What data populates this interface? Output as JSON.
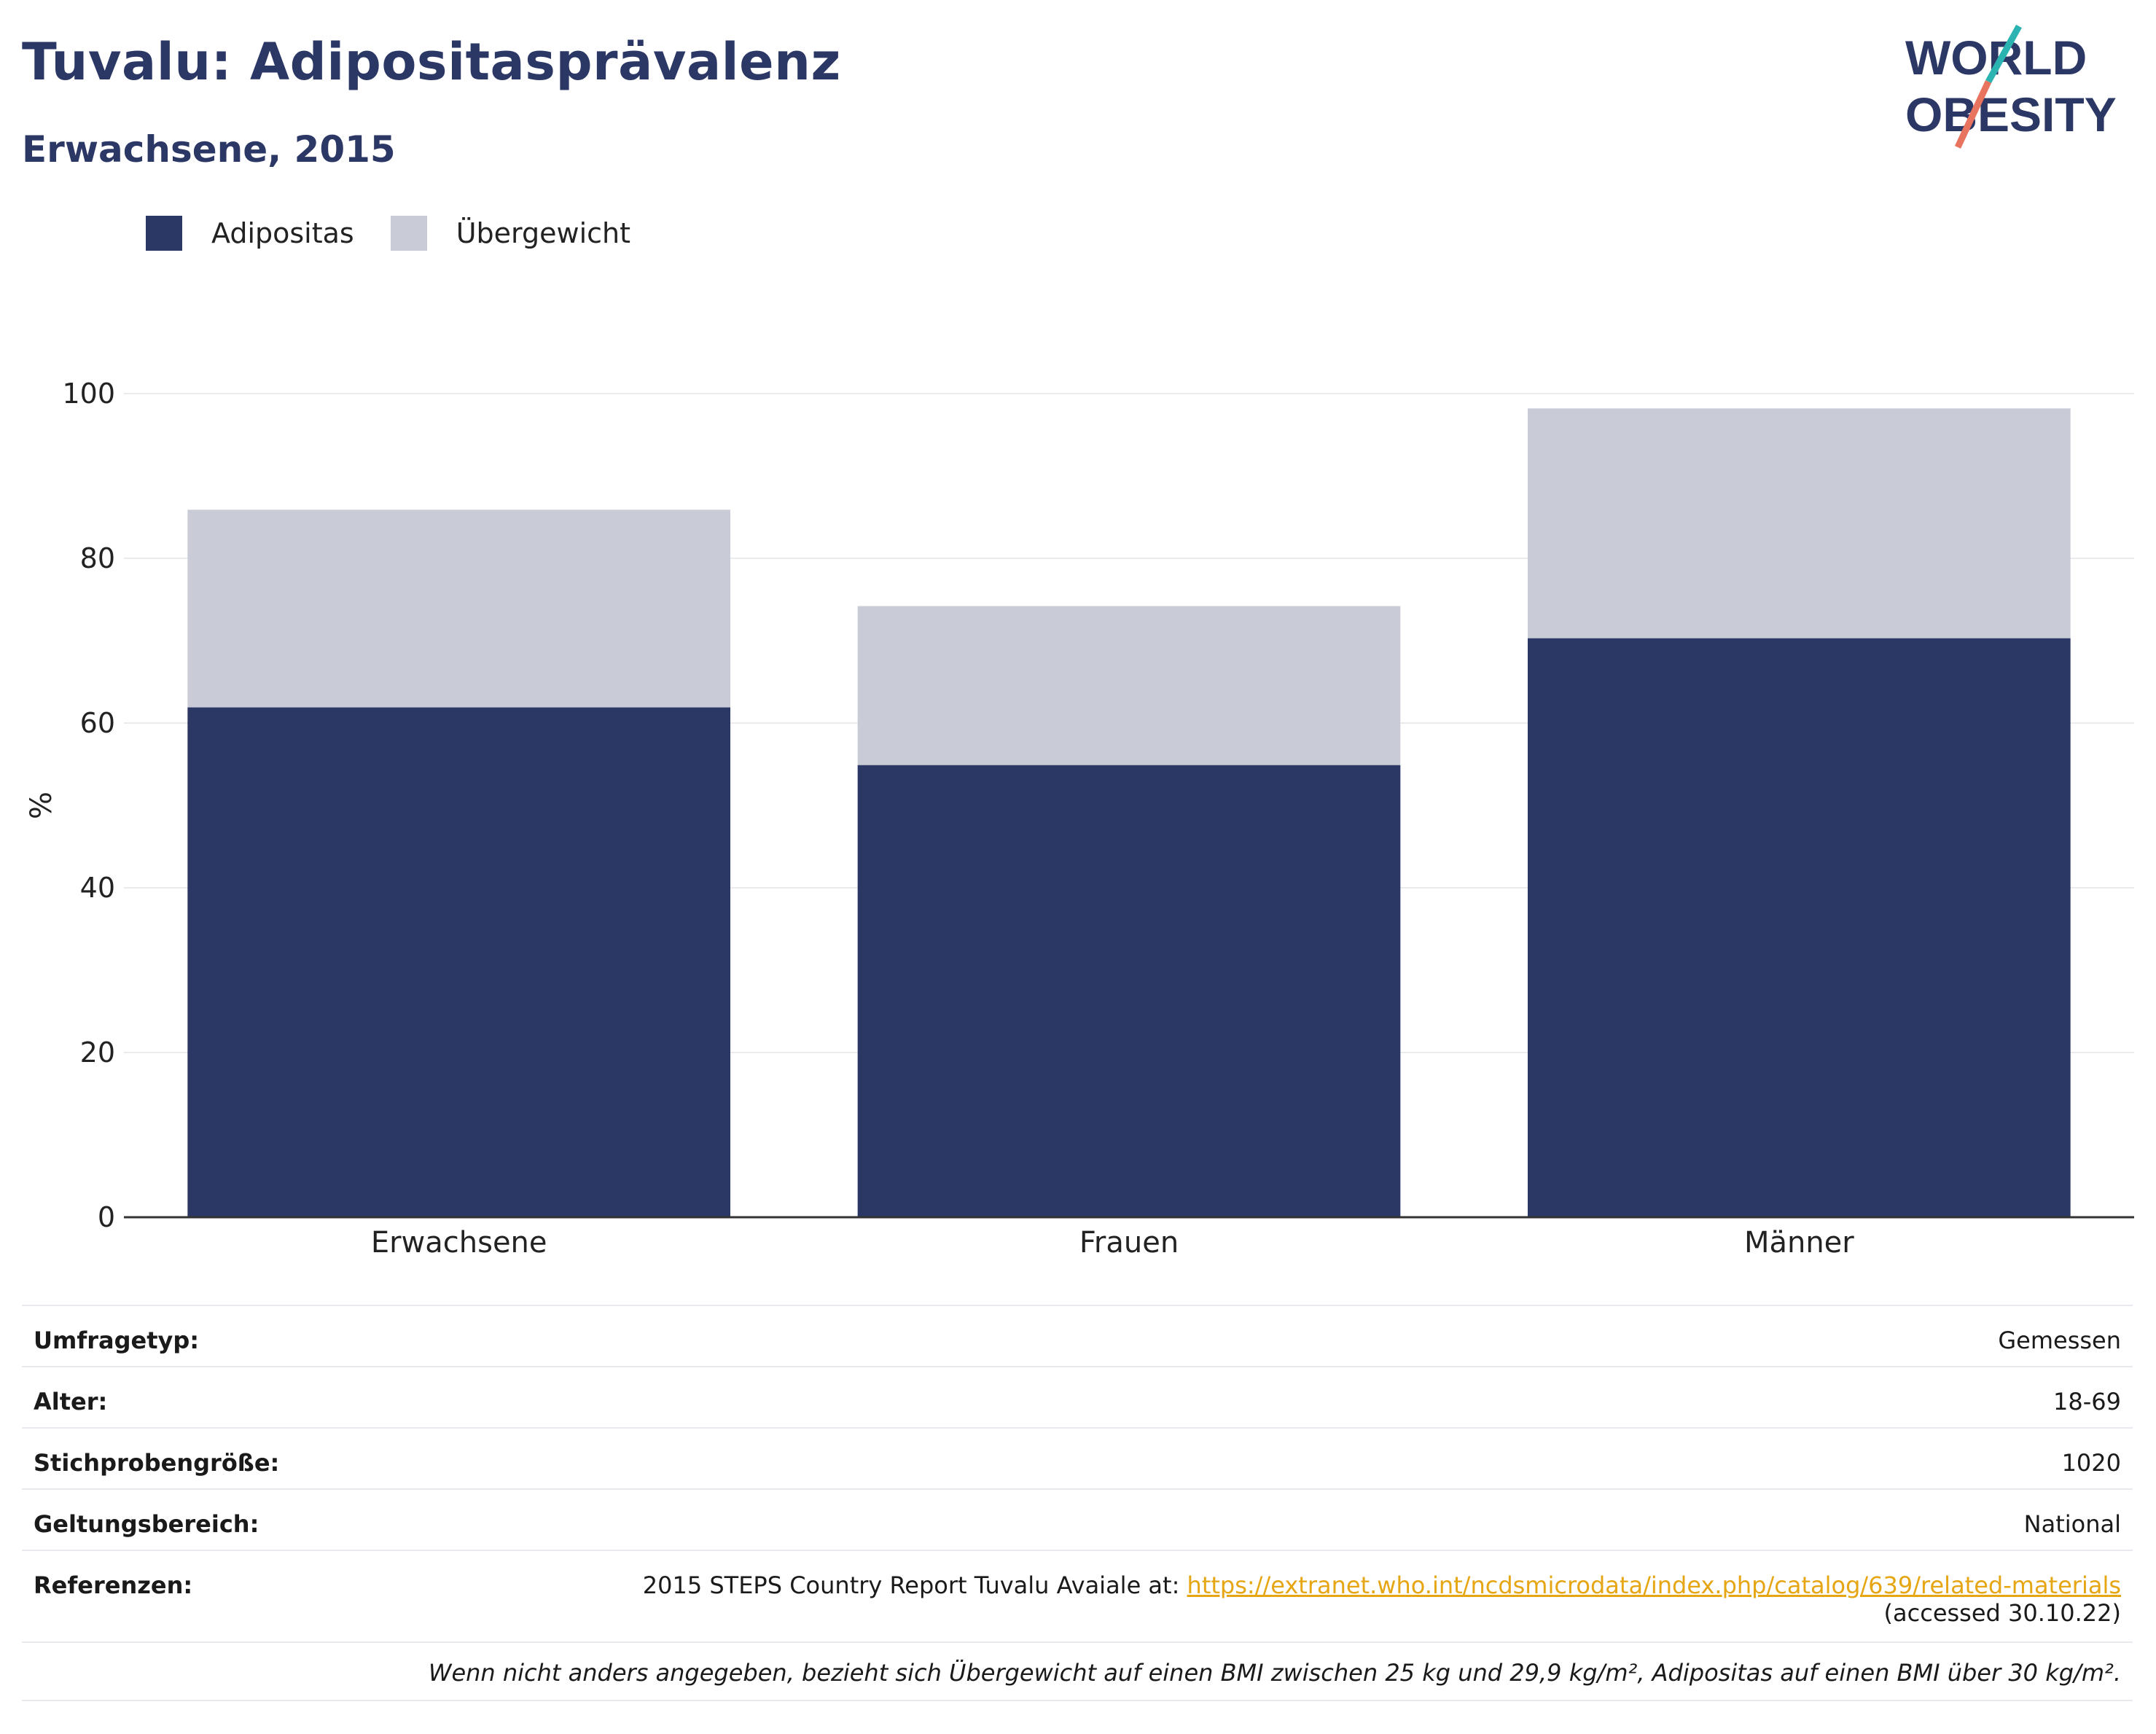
{
  "header": {
    "title": "Tuvalu: Adipositasprävalenz",
    "subtitle": "Erwachsene, 2015",
    "logo_line1": "WORLD",
    "logo_line2": "OBESITY"
  },
  "colors": {
    "obesity": "#2b3764",
    "overweight": "#c9cbd6",
    "link": "#e6a512",
    "logo_teal": "#2bb3b1",
    "logo_coral": "#e8735f"
  },
  "chart_data": {
    "type": "bar",
    "stacked": true,
    "categories": [
      "Erwachsene",
      "Frauen",
      "Männer"
    ],
    "series": [
      {
        "name": "Adipositas",
        "values": [
          61.9,
          54.9,
          70.3
        ]
      },
      {
        "name": "Übergewicht",
        "values": [
          24.0,
          19.3,
          27.9
        ]
      }
    ],
    "ylabel": "%",
    "ylim": [
      0,
      100
    ],
    "yticks": [
      0,
      20,
      40,
      60,
      80,
      100
    ],
    "grid": true,
    "legend_position": "top-left"
  },
  "info": {
    "rows": [
      {
        "label": "Umfragetyp:",
        "value": "Gemessen"
      },
      {
        "label": "Alter:",
        "value": "18-69"
      },
      {
        "label": "Stichprobengröße:",
        "value": "1020"
      },
      {
        "label": "Geltungsbereich:",
        "value": "National"
      }
    ],
    "references_label": "Referenzen:",
    "references_text": "2015 STEPS Country Report Tuvalu Avaiale at: ",
    "references_link": "https://extranet.who.int/ncdsmicrodata/index.php/catalog/639/related-materials",
    "references_accessed": "(accessed 30.10.22)",
    "footnote": "Wenn nicht anders angegeben, bezieht sich Übergewicht auf einen BMI zwischen 25 kg und 29,9 kg/m², Adipositas auf einen BMI über 30 kg/m²."
  }
}
